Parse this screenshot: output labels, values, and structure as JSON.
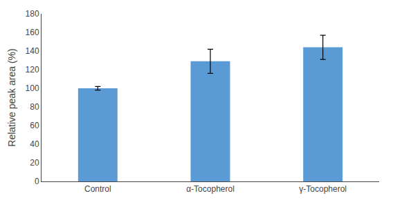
{
  "chart_data": {
    "type": "bar",
    "categories": [
      "Control",
      "α-Tocopherol",
      "γ-Tocopherol"
    ],
    "values": [
      100,
      129,
      144
    ],
    "errors": [
      2,
      13,
      13
    ],
    "color": "#5b9bd5",
    "ylabel": "Relative peak area (%)",
    "ylim": [
      0,
      180
    ],
    "yticks": [
      0,
      20,
      40,
      60,
      80,
      100,
      120,
      140,
      160,
      180
    ],
    "grid": false
  }
}
